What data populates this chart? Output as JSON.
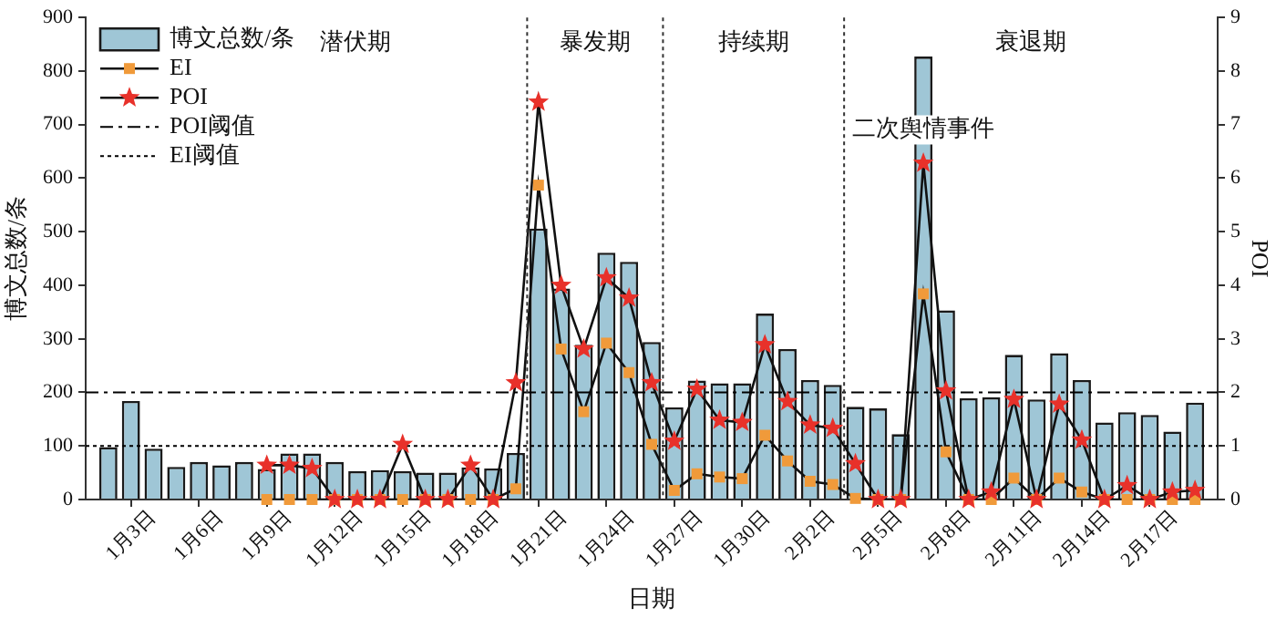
{
  "chart_data": {
    "type": "bar",
    "xlabel": "日期",
    "ylabel": "博文总数/条",
    "y2label": "POI",
    "legend": "top left",
    "grid": false,
    "x": [
      "--01-02",
      "--01-03",
      "--01-04",
      "--01-05",
      "--01-06",
      "--01-07",
      "--01-08",
      "--01-09",
      "--01-10",
      "--01-11",
      "--01-12",
      "--01-13",
      "--01-14",
      "--01-15",
      "--01-16",
      "--01-17",
      "--01-18",
      "--01-19",
      "--01-20",
      "--01-21",
      "--01-22",
      "--01-23",
      "--01-24",
      "--01-25",
      "--01-26",
      "--01-27",
      "--01-28",
      "--01-29",
      "--01-30",
      "--01-31",
      "--02-01",
      "--02-02",
      "--02-03",
      "--02-04",
      "--02-05",
      "--02-06",
      "--02-07",
      "--02-08",
      "--02-09",
      "--02-10",
      "--02-11",
      "--02-12",
      "--02-13",
      "--02-14",
      "--02-15",
      "--02-16",
      "--02-17",
      "--02-18",
      "--02-19"
    ],
    "xlim": [
      "--01-01",
      "--02-20"
    ],
    "xticks": [
      {
        "value": "--01-03",
        "label": "1月3日"
      },
      {
        "value": "--01-06",
        "label": "1月6日"
      },
      {
        "value": "--01-09",
        "label": "1月9日"
      },
      {
        "value": "--01-12",
        "label": "1月12日"
      },
      {
        "value": "--01-15",
        "label": "1月15日"
      },
      {
        "value": "--01-18",
        "label": "1月18日"
      },
      {
        "value": "--01-21",
        "label": "1月21日"
      },
      {
        "value": "--01-24",
        "label": "1月24日"
      },
      {
        "value": "--01-27",
        "label": "1月27日"
      },
      {
        "value": "--01-30",
        "label": "1月30日"
      },
      {
        "value": "--02-02",
        "label": "2月2日"
      },
      {
        "value": "--02-05",
        "label": "2月5日"
      },
      {
        "value": "--02-08",
        "label": "2月8日"
      },
      {
        "value": "--02-11",
        "label": "2月11日"
      },
      {
        "value": "--02-14",
        "label": "2月14日"
      },
      {
        "value": "--02-17",
        "label": "2月17日"
      }
    ],
    "ylim": [
      0,
      900
    ],
    "yticks": [
      0,
      100,
      200,
      300,
      400,
      500,
      600,
      700,
      800,
      900
    ],
    "y2lim": [
      0,
      9
    ],
    "y2ticks": [
      0,
      1,
      2,
      3,
      4,
      5,
      6,
      7,
      8,
      9
    ],
    "series": [
      {
        "name": "博文总数/条",
        "color": "#9fc6d6",
        "values": [
          98,
          184,
          95,
          61,
          70,
          64,
          70,
          57,
          86,
          86,
          70,
          53,
          55,
          53,
          50,
          50,
          60,
          58,
          87,
          506,
          394,
          289,
          461,
          444,
          294,
          172,
          222,
          217,
          217,
          347,
          281,
          223,
          214,
          173,
          170,
          122,
          827,
          353,
          189,
          191,
          270,
          187,
          273,
          223,
          144,
          163,
          158,
          127,
          181
        ]
      },
      {
        "name": "EI",
        "type": "line",
        "axis": "y2",
        "color": "#f09a3a",
        "marker": "square",
        "values": [
          null,
          null,
          null,
          null,
          null,
          null,
          null,
          0,
          0,
          0,
          0,
          0,
          0,
          0,
          0,
          0,
          0,
          0,
          0.2,
          5.87,
          2.81,
          1.64,
          2.92,
          2.37,
          1.03,
          0.17,
          0.48,
          0.42,
          0.39,
          1.2,
          0.72,
          0.34,
          0.28,
          0.02,
          0,
          0,
          3.84,
          0.89,
          0,
          0,
          0.4,
          0,
          0.4,
          0.14,
          0,
          0,
          0,
          0,
          0
        ]
      },
      {
        "name": "POI",
        "type": "line",
        "axis": "y2",
        "color": "#e8312a",
        "marker": "star",
        "values": [
          null,
          null,
          null,
          null,
          null,
          null,
          null,
          0.64,
          0.64,
          0.58,
          0,
          0,
          0,
          1.03,
          0,
          0,
          0.64,
          0,
          2.18,
          7.42,
          4.0,
          2.81,
          4.14,
          3.76,
          2.18,
          1.09,
          2.06,
          1.48,
          1.44,
          2.89,
          1.83,
          1.39,
          1.33,
          0.67,
          0,
          0,
          6.28,
          2.03,
          0,
          0.14,
          1.87,
          0,
          1.78,
          1.11,
          0,
          0.26,
          0,
          0.14,
          0.17
        ]
      }
    ],
    "ref_lines": [
      {
        "axis": "y2",
        "value": 2,
        "label": "POI阈值",
        "line_style": "dashed",
        "color": "#000000"
      },
      {
        "axis": "y2",
        "value": 1,
        "label": "EI阈值",
        "line_style": "dotted",
        "color": "#000000"
      },
      {
        "axis": "x",
        "value": "--01-20T12:00",
        "line_style": "dotted",
        "color": "#333333"
      },
      {
        "axis": "x",
        "value": "--01-26T12:00",
        "line_style": "dotted",
        "color": "#333333"
      },
      {
        "axis": "x",
        "value": "--02-03T12:00",
        "line_style": "dotted",
        "color": "#333333"
      }
    ],
    "annotations": [
      "潜伏期",
      "暴发期",
      "持续期",
      "衰退期",
      {
        "text": "二次舆情事件",
        "x": "--02-07",
        "y": 690
      }
    ]
  }
}
